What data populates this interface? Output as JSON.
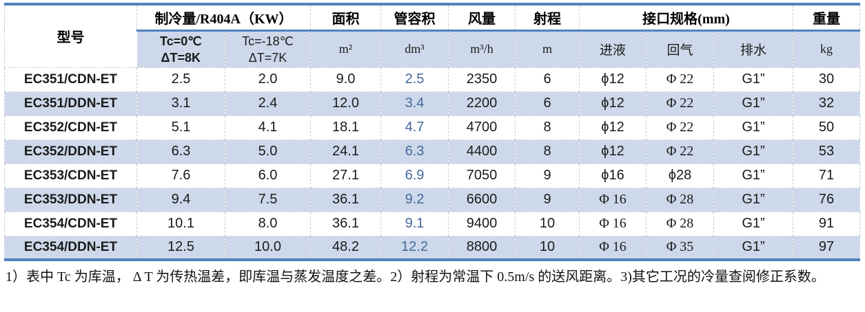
{
  "table": {
    "header": {
      "model": "型号",
      "cooling": "制冷量/R404A（KW）",
      "area": "面积",
      "tube_volume": "管容积",
      "air_flow": "风量",
      "throw": "射程",
      "connections": "接口规格(mm)",
      "weight": "重量"
    },
    "subheader": {
      "tc0": {
        "line1": "Tc=0℃",
        "line2": "ΔT=8K"
      },
      "tcm18": {
        "line1": "Tc=-18℃",
        "line2": "ΔT=7K"
      },
      "area_unit": "m²",
      "tube_volume_unit": "dm³",
      "air_flow_unit": "m³/h",
      "throw_unit": "m",
      "liquid_in": "进液",
      "gas_return": "回气",
      "drain": "排水",
      "weight_unit": "kg"
    },
    "rows": [
      {
        "model": "EC351/CDN-ET",
        "cooling_0c": "2.5",
        "cooling_m18": "2.0",
        "area": "9.0",
        "tube_volume": "2.5",
        "air_flow": "2350",
        "throw": "6",
        "liquid_in": "ϕ12",
        "gas_return": "Φ 22",
        "drain": "G1”",
        "weight": "30"
      },
      {
        "model": "EC351/DDN-ET",
        "cooling_0c": "3.1",
        "cooling_m18": "2.4",
        "area": "12.0",
        "tube_volume": "3.4",
        "air_flow": "2200",
        "throw": "6",
        "liquid_in": "ϕ12",
        "gas_return": "Φ 22",
        "drain": "G1”",
        "weight": "32"
      },
      {
        "model": "EC352/CDN-ET",
        "cooling_0c": "5.1",
        "cooling_m18": "4.1",
        "area": "18.1",
        "tube_volume": "4.7",
        "air_flow": "4700",
        "throw": "8",
        "liquid_in": "ϕ12",
        "gas_return": "Φ 22",
        "drain": "G1”",
        "weight": "50"
      },
      {
        "model": "EC352/DDN-ET",
        "cooling_0c": "6.3",
        "cooling_m18": "5.0",
        "area": "24.1",
        "tube_volume": "6.3",
        "air_flow": "4400",
        "throw": "8",
        "liquid_in": "ϕ12",
        "gas_return": "Φ 22",
        "drain": "G1”",
        "weight": "53"
      },
      {
        "model": "EC353/CDN-ET",
        "cooling_0c": "7.6",
        "cooling_m18": "6.0",
        "area": "27.1",
        "tube_volume": "6.9",
        "air_flow": "7050",
        "throw": "9",
        "liquid_in": "ϕ16",
        "gas_return": "ϕ28",
        "drain": "G1”",
        "weight": "71"
      },
      {
        "model": "EC353/DDN-ET",
        "cooling_0c": "9.4",
        "cooling_m18": "7.5",
        "area": "36.1",
        "tube_volume": "9.2",
        "air_flow": "6600",
        "throw": "9",
        "liquid_in": "Φ 16",
        "gas_return": "Φ 28",
        "drain": "G1”",
        "weight": "76"
      },
      {
        "model": "EC354/CDN-ET",
        "cooling_0c": "10.1",
        "cooling_m18": "8.0",
        "area": "36.1",
        "tube_volume": "9.1",
        "air_flow": "9400",
        "throw": "10",
        "liquid_in": "Φ 16",
        "gas_return": "Φ 28",
        "drain": "G1”",
        "weight": "91"
      },
      {
        "model": "EC354/DDN-ET",
        "cooling_0c": "12.5",
        "cooling_m18": "10.0",
        "area": "48.2",
        "tube_volume": "12.2",
        "air_flow": "8800",
        "throw": "10",
        "liquid_in": "Φ 16",
        "gas_return": "Φ 35",
        "drain": "G1”",
        "weight": "97"
      }
    ]
  },
  "note": "1）表中 Tc 为库温， Δ T 为传热温差，即库温与蒸发温度之差。2）射程为常温下 0.5m/s 的送风距离。3)其它工况的冷量查阅修正系数。",
  "colors": {
    "accent_blue_line": "#4f81bd",
    "band_fill": "#cdd9ea",
    "tube_volume_text": "#44689a",
    "grid_dash": "#c9c9c9"
  }
}
